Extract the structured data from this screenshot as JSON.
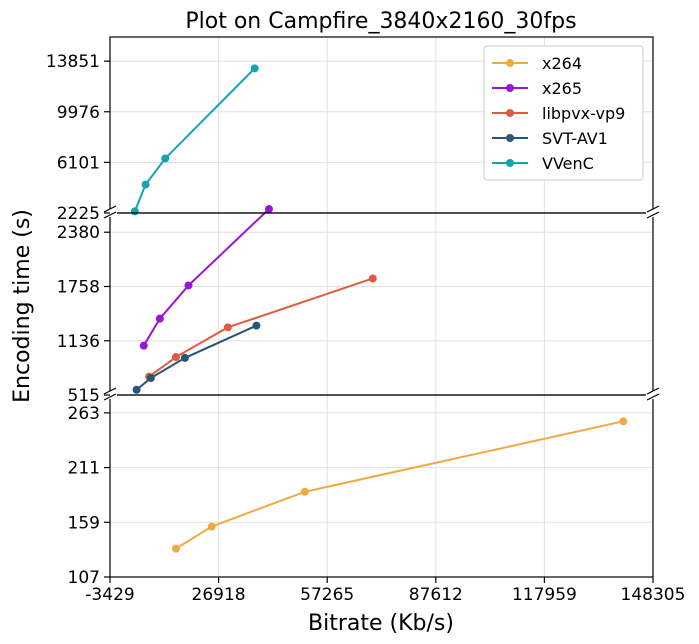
{
  "chart_data": {
    "type": "line",
    "title": "Plot on Campfire_3840x2160_30fps",
    "xlabel": "Bitrate (Kb/s)",
    "ylabel": "Encoding time (s)",
    "xlim": [
      -3429,
      148305
    ],
    "x_ticks": [
      "-3429",
      "26918",
      "57265",
      "87612",
      "117959",
      "148305"
    ],
    "grid": true,
    "legend_position": "top-right",
    "broken_axis": true,
    "panels": [
      {
        "ylim": [
          2225,
          15700
        ],
        "y_ticks": [
          "2225",
          "6101",
          "9976",
          "13851"
        ],
        "y_tick_values": [
          2225,
          6101,
          9976,
          13851
        ]
      },
      {
        "ylim": [
          515,
          2600
        ],
        "y_ticks": [
          "515",
          "1136",
          "1758",
          "2380"
        ],
        "y_tick_values": [
          515,
          1136,
          1758,
          2380
        ]
      },
      {
        "ylim": [
          107,
          280
        ],
        "y_ticks": [
          "107",
          "159",
          "211",
          "263"
        ],
        "y_tick_values": [
          107,
          159,
          211,
          263
        ]
      }
    ],
    "series": [
      {
        "name": "x264",
        "color": "#F2A845",
        "x": [
          15000,
          25000,
          51000,
          140000
        ],
        "y": [
          134,
          155,
          188,
          255
        ]
      },
      {
        "name": "x265",
        "color": "#9B14D8",
        "x": [
          6000,
          10500,
          18500,
          41000
        ],
        "y": [
          1080,
          1390,
          1770,
          2530
        ]
      },
      {
        "name": "libpvx-vp9",
        "color": "#E05A3F",
        "x": [
          7500,
          15000,
          29500,
          70000
        ],
        "y": [
          725,
          950,
          1290,
          1850
        ]
      },
      {
        "name": "SVT-AV1",
        "color": "#2A5478",
        "x": [
          4000,
          8000,
          17500,
          37500
        ],
        "y": [
          575,
          710,
          940,
          1310
        ]
      },
      {
        "name": "VVenC",
        "color": "#17A2B0",
        "x": [
          3500,
          6500,
          12000,
          37000
        ],
        "y": [
          2350,
          4400,
          6400,
          13300
        ]
      }
    ]
  }
}
